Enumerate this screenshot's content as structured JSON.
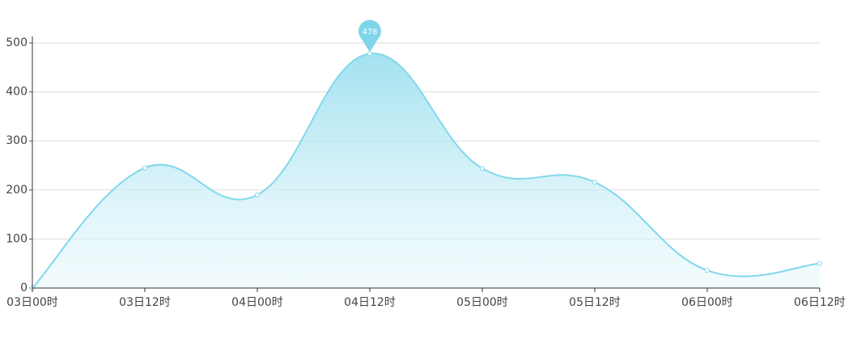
{
  "chart_data": {
    "type": "area",
    "categories": [
      "03日00时",
      "03日12时",
      "04日00时",
      "04日12时",
      "05日00时",
      "05日12时",
      "06日00时",
      "06日12时"
    ],
    "values": [
      0,
      245,
      190,
      478,
      244,
      216,
      36,
      50
    ],
    "color": "#80d8ec",
    "ylim": [
      0,
      500
    ],
    "yticks": [
      0,
      100,
      200,
      300,
      400,
      500
    ],
    "grid": true
  }
}
